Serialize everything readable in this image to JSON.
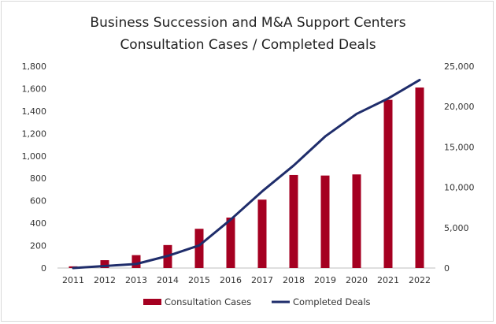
{
  "chart_data": {
    "type": "bar+line",
    "title": [
      "Business Succession and M&A Support Centers",
      "Consultation Cases / Completed Deals"
    ],
    "categories": [
      "2011",
      "2012",
      "2013",
      "2014",
      "2015",
      "2016",
      "2017",
      "2018",
      "2019",
      "2020",
      "2021",
      "2022"
    ],
    "series": [
      {
        "name": "Consultation Cases",
        "type": "bar",
        "axis": "left",
        "color": "#a50021",
        "values": [
          15,
          70,
          115,
          205,
          350,
          450,
          610,
          830,
          825,
          835,
          1500,
          1610
        ]
      },
      {
        "name": "Completed Deals",
        "type": "line",
        "axis": "right",
        "color": "#1f2d6b",
        "values": [
          0,
          250,
          500,
          1500,
          2800,
          6000,
          9500,
          12700,
          16300,
          19100,
          21000,
          23300
        ]
      }
    ],
    "y_left": {
      "min": 0,
      "max": 1800,
      "step": 200,
      "ticks": [
        "0",
        "200",
        "400",
        "600",
        "800",
        "1,000",
        "1,200",
        "1,400",
        "1,600",
        "1,800"
      ]
    },
    "y_right": {
      "min": 0,
      "max": 25000,
      "step": 5000,
      "ticks": [
        "0",
        "5,000",
        "10,000",
        "15,000",
        "20,000",
        "25,000"
      ]
    },
    "legend": {
      "position": "bottom",
      "items": [
        "Consultation Cases",
        "Completed Deals"
      ]
    },
    "grid": false
  }
}
